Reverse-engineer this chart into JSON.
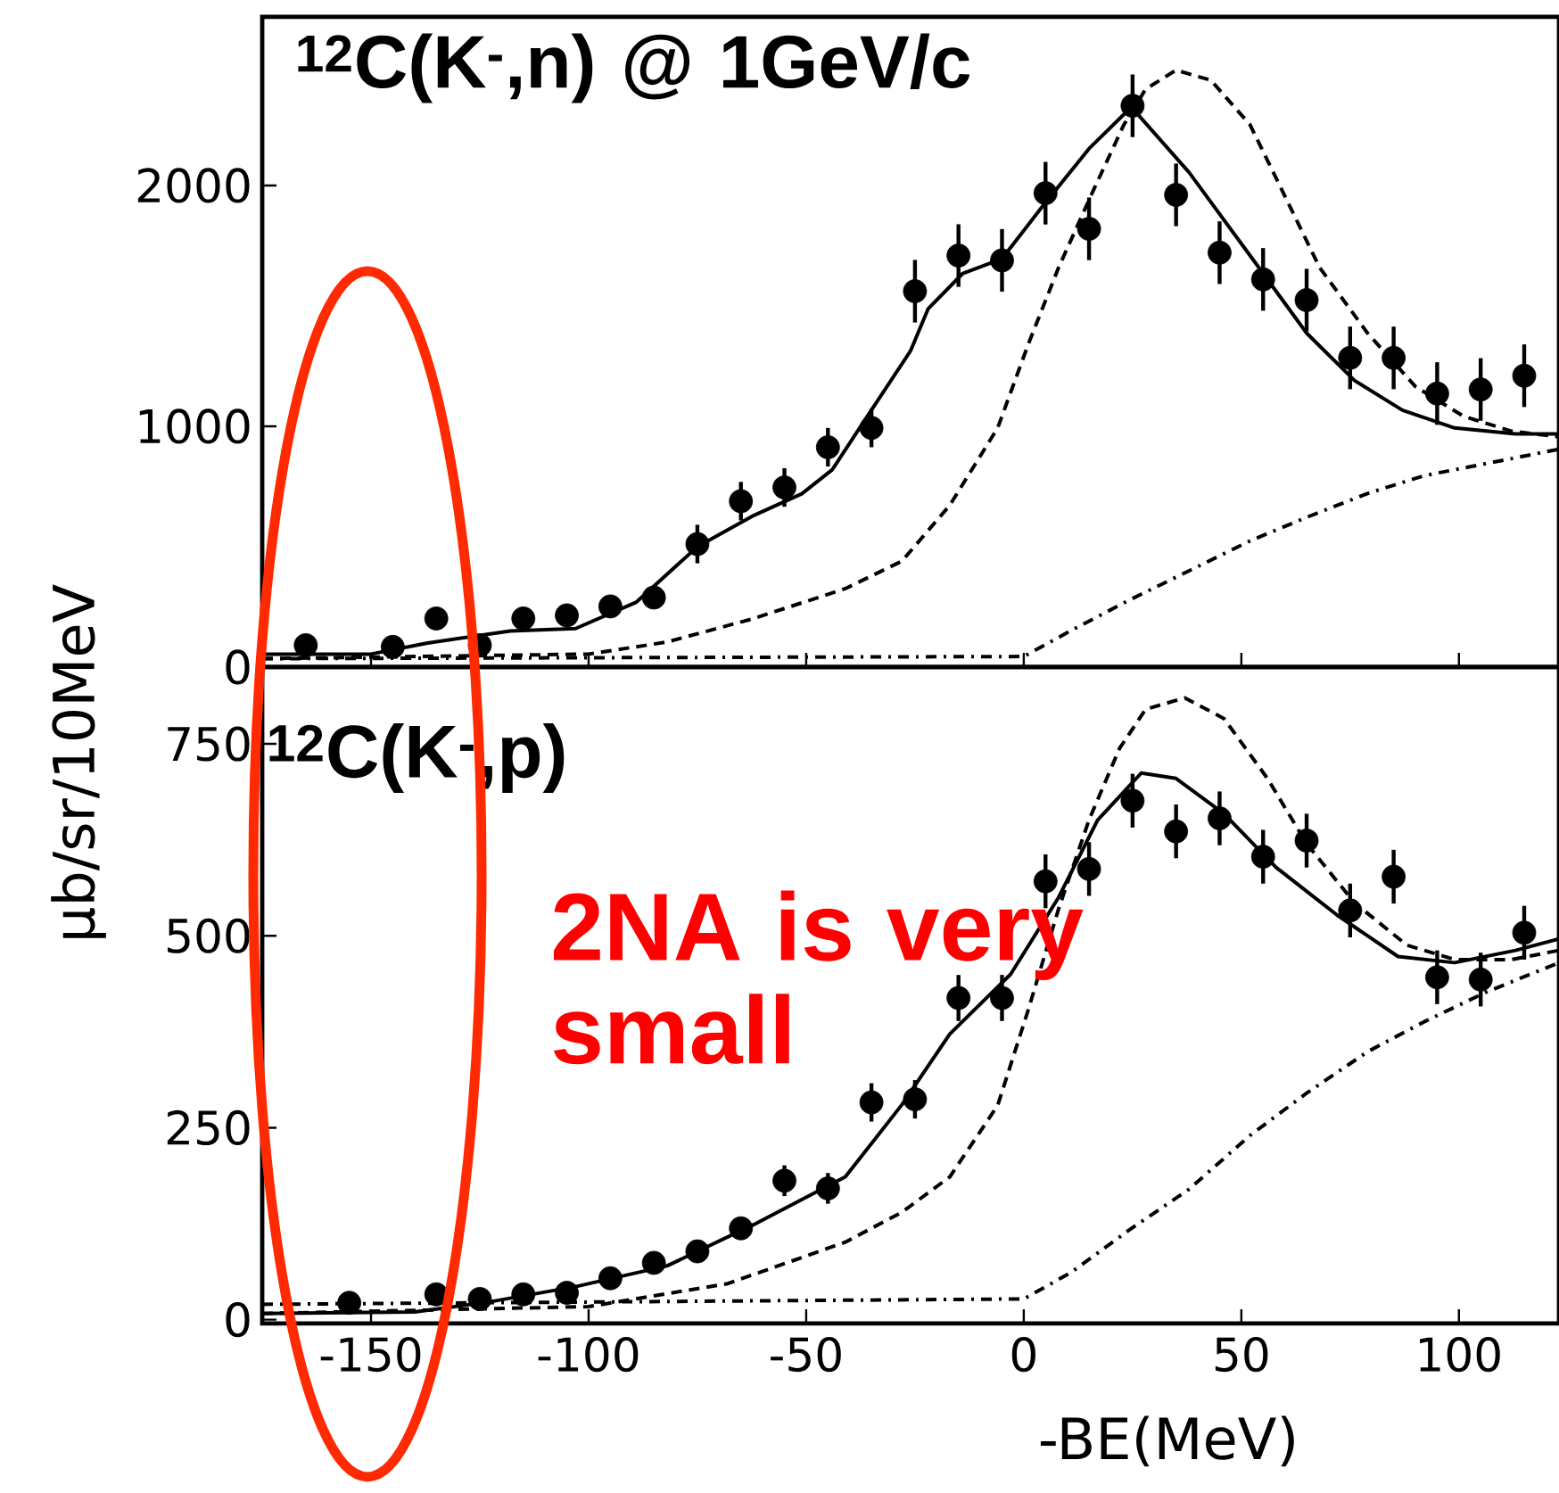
{
  "chart_data": [
    {
      "type": "scatter",
      "xlim": [
        -175,
        123
      ],
      "ylim": [
        0,
        2700
      ],
      "xticks": [
        -150,
        -100,
        -50,
        0,
        50,
        100
      ],
      "yticks": [
        0,
        1000,
        2000
      ],
      "tick_labels": "y",
      "ylabel": "μb/sr/10MeV",
      "annotations": [
        "$^{12}$C(K$^{-}$,n) @ 1GeV/c"
      ],
      "series": [
        {
          "type": "line",
          "line_style": "solid",
          "marker": "none",
          "color": "#000000",
          "x": [
            -175,
            -150,
            -137,
            -118,
            -103,
            -89,
            -75,
            -62,
            -51,
            -44,
            -36,
            -26,
            -22,
            -14,
            -5,
            4,
            15,
            24,
            25,
            38,
            52,
            65,
            76,
            87,
            99,
            113,
            123
          ],
          "values": [
            54,
            54,
            100,
            150,
            160,
            270,
            500,
            630,
            720,
            820,
            1040,
            1314,
            1487,
            1635,
            1696,
            1906,
            2153,
            2313,
            2320,
            2054,
            1709,
            1387,
            1190,
            1067,
            993,
            968,
            968
          ]
        },
        {
          "type": "line",
          "line_style": "dashed",
          "marker": "none",
          "color": "#000000",
          "x": [
            -175,
            -100,
            -82,
            -62,
            -41,
            -28,
            -17,
            -6,
            1,
            8,
            16,
            23,
            28,
            35,
            43,
            52,
            60,
            68,
            79,
            90,
            101,
            112,
            123
          ],
          "values": [
            35,
            54,
            104,
            202,
            326,
            440,
            672,
            993,
            1339,
            1659,
            1980,
            2252,
            2400,
            2479,
            2437,
            2252,
            1956,
            1659,
            1387,
            1165,
            1042,
            980,
            956
          ]
        },
        {
          "type": "line",
          "line_style": "dashdot",
          "marker": "none",
          "color": "#000000",
          "x": [
            -175,
            0,
            11,
            24,
            38,
            52,
            65,
            79,
            92,
            106,
            123
          ],
          "values": [
            35,
            44,
            153,
            276,
            400,
            524,
            622,
            721,
            795,
            844,
            905
          ]
        },
        {
          "type": "scatter",
          "marker": "circle",
          "color": "#000000",
          "x": [
            -165,
            -145,
            -135,
            -125,
            -115,
            -105,
            -95,
            -85,
            -75,
            -65,
            -55,
            -45,
            -35,
            -25,
            -15,
            -5,
            5,
            15,
            25,
            35,
            45,
            55,
            65,
            75,
            85,
            95,
            105,
            115
          ],
          "values": [
            91,
            84,
            202,
            91,
            202,
            215,
            252,
            289,
            511,
            689,
            746,
            913,
            993,
            1561,
            1709,
            1689,
            1968,
            1820,
            2331,
            1961,
            1721,
            1610,
            1524,
            1284,
            1284,
            1136,
            1153,
            1210
          ],
          "errors": [
            null,
            null,
            null,
            null,
            null,
            null,
            null,
            null,
            80,
            80,
            80,
            80,
            80,
            130,
            130,
            130,
            130,
            130,
            130,
            130,
            130,
            130,
            130,
            130,
            130,
            130,
            130,
            130
          ]
        }
      ]
    },
    {
      "type": "scatter",
      "xlim": [
        -175,
        123
      ],
      "ylim": [
        -5,
        850
      ],
      "xticks": [
        -150,
        -100,
        -50,
        0,
        50,
        100
      ],
      "yticks": [
        0,
        250,
        500,
        750
      ],
      "xlabel": "-BE(MeV)",
      "annotations": [
        "$^{12}$C(K$^{-}$,p)",
        "2NA is very small"
      ],
      "series": [
        {
          "type": "line",
          "line_style": "solid",
          "marker": "none",
          "color": "#000000",
          "x": [
            -175,
            -140,
            -123,
            -103,
            -82,
            -62,
            -41,
            -28,
            -17,
            -3,
            8,
            17,
            27,
            35,
            46,
            58,
            72,
            86,
            99,
            113,
            123
          ],
          "values": [
            8,
            10,
            23,
            43,
            70,
            124,
            186,
            280,
            372,
            450,
            550,
            651,
            712,
            705,
            659,
            589,
            527,
            473,
            465,
            481,
            496
          ]
        },
        {
          "type": "line",
          "line_style": "dashed",
          "marker": "none",
          "color": "#000000",
          "x": [
            -175,
            -100,
            -68,
            -41,
            -28,
            -17,
            -6,
            1,
            8,
            15,
            22,
            28,
            37,
            46,
            56,
            65,
            76,
            88,
            99,
            112,
            123
          ],
          "values": [
            8,
            17,
            47,
            101,
            140,
            186,
            279,
            403,
            535,
            651,
            744,
            795,
            810,
            783,
            705,
            620,
            543,
            488,
            469,
            469,
            481
          ]
        },
        {
          "type": "line",
          "line_style": "dashdot",
          "marker": "none",
          "color": "#000000",
          "x": [
            -175,
            0,
            11,
            24,
            38,
            52,
            65,
            79,
            92,
            106,
            123
          ],
          "values": [
            20,
            27,
            62,
            116,
            170,
            240,
            295,
            349,
            388,
            426,
            465
          ]
        },
        {
          "type": "scatter",
          "marker": "circle",
          "color": "#000000",
          "x": [
            -155,
            -135,
            -125,
            -115,
            -105,
            -95,
            -85,
            -75,
            -65,
            -55,
            -45,
            -35,
            -25,
            -15,
            -5,
            5,
            15,
            25,
            35,
            45,
            55,
            65,
            75,
            85,
            95,
            105,
            115
          ],
          "values": [
            22,
            33,
            27,
            33,
            35,
            54,
            74,
            89,
            119,
            181,
            171,
            283,
            287,
            419,
            419,
            571,
            587,
            676,
            636,
            653,
            603,
            624,
            533,
            577,
            446,
            443,
            504
          ],
          "errors": [
            null,
            null,
            null,
            null,
            null,
            null,
            null,
            null,
            null,
            20,
            20,
            25,
            25,
            30,
            30,
            35,
            35,
            35,
            35,
            35,
            35,
            35,
            35,
            35,
            35,
            35,
            35
          ]
        }
      ]
    }
  ]
}
